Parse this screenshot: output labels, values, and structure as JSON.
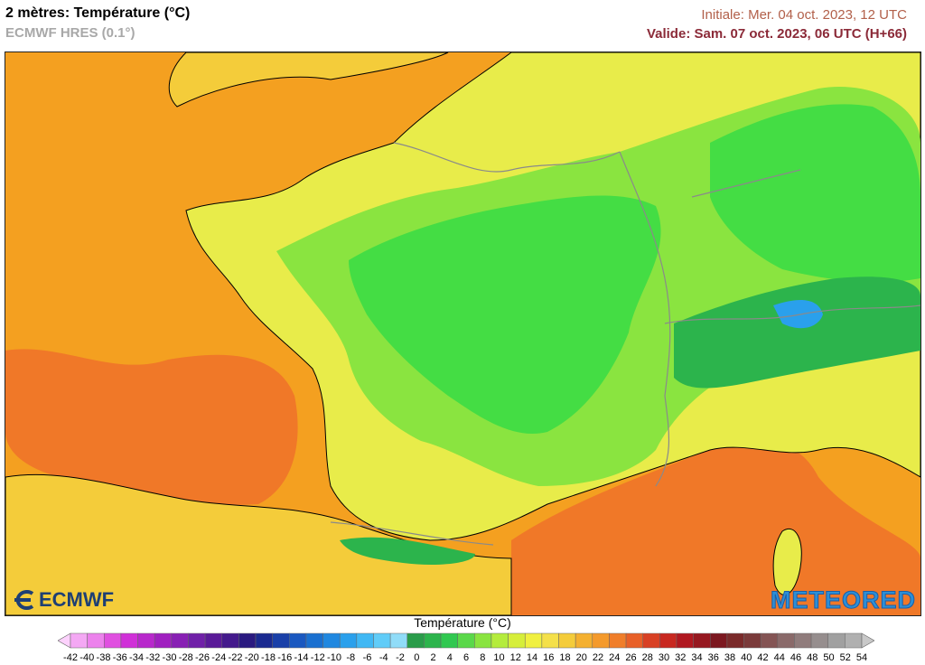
{
  "header": {
    "title": "2 mètres: Température (°C)",
    "model": "ECMWF HRES (0.1°)",
    "initial": "Initiale: Mer. 04 oct. 2023, 12 UTC",
    "valid": "Valide: Sam. 07 oct. 2023, 06 UTC (H+66)"
  },
  "logos": {
    "ecmwf": "ECMWF",
    "meteored": "METEORED"
  },
  "legend": {
    "title": "Température (°C)",
    "labels": [
      "-42",
      "-40",
      "-38",
      "-36",
      "-34",
      "-32",
      "-30",
      "-28",
      "-26",
      "-24",
      "-22",
      "-20",
      "-18",
      "-16",
      "-14",
      "-12",
      "-10",
      "-8",
      "-6",
      "-4",
      "-2",
      "0",
      "2",
      "4",
      "6",
      "8",
      "10",
      "12",
      "14",
      "16",
      "18",
      "20",
      "22",
      "24",
      "26",
      "28",
      "30",
      "32",
      "34",
      "36",
      "38",
      "40",
      "42",
      "44",
      "46",
      "48",
      "50",
      "52",
      "54"
    ],
    "colors": [
      "#fcd2fc",
      "#f4a8f4",
      "#ec82ec",
      "#e050e0",
      "#d030d8",
      "#b828cc",
      "#a020c0",
      "#8820b4",
      "#7020a8",
      "#5a1a98",
      "#441a8c",
      "#2a1a80",
      "#1a2a90",
      "#1a40a8",
      "#1a58c0",
      "#1a70d0",
      "#2088e0",
      "#2aa0ec",
      "#40b8f4",
      "#60ccf8",
      "#90dcf8",
      "#2a9c4a",
      "#2cb44c",
      "#30c850",
      "#5ad84a",
      "#8ae440",
      "#b4ec3c",
      "#d6ee3a",
      "#f0f040",
      "#f4e04a",
      "#f4cc3a",
      "#f4b030",
      "#f49a2c",
      "#f07e2a",
      "#e86028",
      "#d84024",
      "#c82820",
      "#b01820",
      "#961820",
      "#7c1820",
      "#7a2a2a",
      "#7a3a3a",
      "#845454",
      "#8a6a6a",
      "#907c7c",
      "#968e8e",
      "#a0a0a0",
      "#b0b0b0",
      "#c8c8c8"
    ]
  },
  "colors": {
    "sea_warm": "#f07828",
    "sea": "#f4a020",
    "land_warm": "#f4cc3a",
    "land_mild": "#e8ec4a",
    "land_cool": "#8ae440",
    "land_cold": "#44dd44",
    "mountain_cold": "#2aa0ec",
    "border": "#8a8a8a",
    "coast": "#000000"
  }
}
